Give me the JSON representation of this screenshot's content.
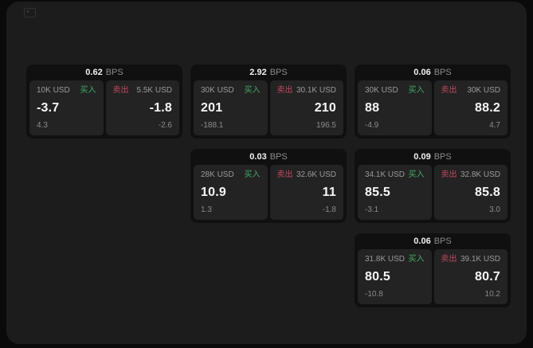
{
  "colors": {
    "backdrop": "#0a0a0a",
    "panel_bg": "#1b1c1b",
    "card_bg": "#101010",
    "pane_bg": "#232323",
    "buy_green": "#3fae63",
    "sell_red": "#c2485c",
    "label_gray": "#9a9a9a",
    "muted_gray": "#8b8b8b",
    "value_white": "#f7f7f7"
  },
  "labels": {
    "bps_unit": "BPS",
    "buy": "买入",
    "sell": "卖出"
  },
  "cards": [
    {
      "row": 1,
      "col": 1,
      "bps": "0.62",
      "buy": {
        "size": "10K USD",
        "value": "-3.7",
        "delta": "4.3"
      },
      "sell": {
        "size": "5.5K USD",
        "value": "-1.8",
        "delta": "-2.6"
      }
    },
    {
      "row": 1,
      "col": 2,
      "bps": "2.92",
      "buy": {
        "size": "30K USD",
        "value": "201",
        "delta": "-188.1"
      },
      "sell": {
        "size": "30.1K USD",
        "value": "210",
        "delta": "196.5"
      }
    },
    {
      "row": 1,
      "col": 3,
      "bps": "0.06",
      "buy": {
        "size": "30K USD",
        "value": "88",
        "delta": "-4.9"
      },
      "sell": {
        "size": "30K USD",
        "value": "88.2",
        "delta": "4.7"
      }
    },
    {
      "row": 2,
      "col": 2,
      "bps": "0.03",
      "buy": {
        "size": "28K USD",
        "value": "10.9",
        "delta": "1.3"
      },
      "sell": {
        "size": "32.6K USD",
        "value": "11",
        "delta": "-1.8"
      }
    },
    {
      "row": 2,
      "col": 3,
      "bps": "0.09",
      "buy": {
        "size": "34.1K USD",
        "value": "85.5",
        "delta": "-3.1"
      },
      "sell": {
        "size": "32.8K USD",
        "value": "85.8",
        "delta": "3.0"
      }
    },
    {
      "row": 3,
      "col": 3,
      "bps": "0.06",
      "buy": {
        "size": "31.8K USD",
        "value": "80.5",
        "delta": "-10.8"
      },
      "sell": {
        "size": "39.1K USD",
        "value": "80.7",
        "delta": "10.2"
      }
    }
  ]
}
